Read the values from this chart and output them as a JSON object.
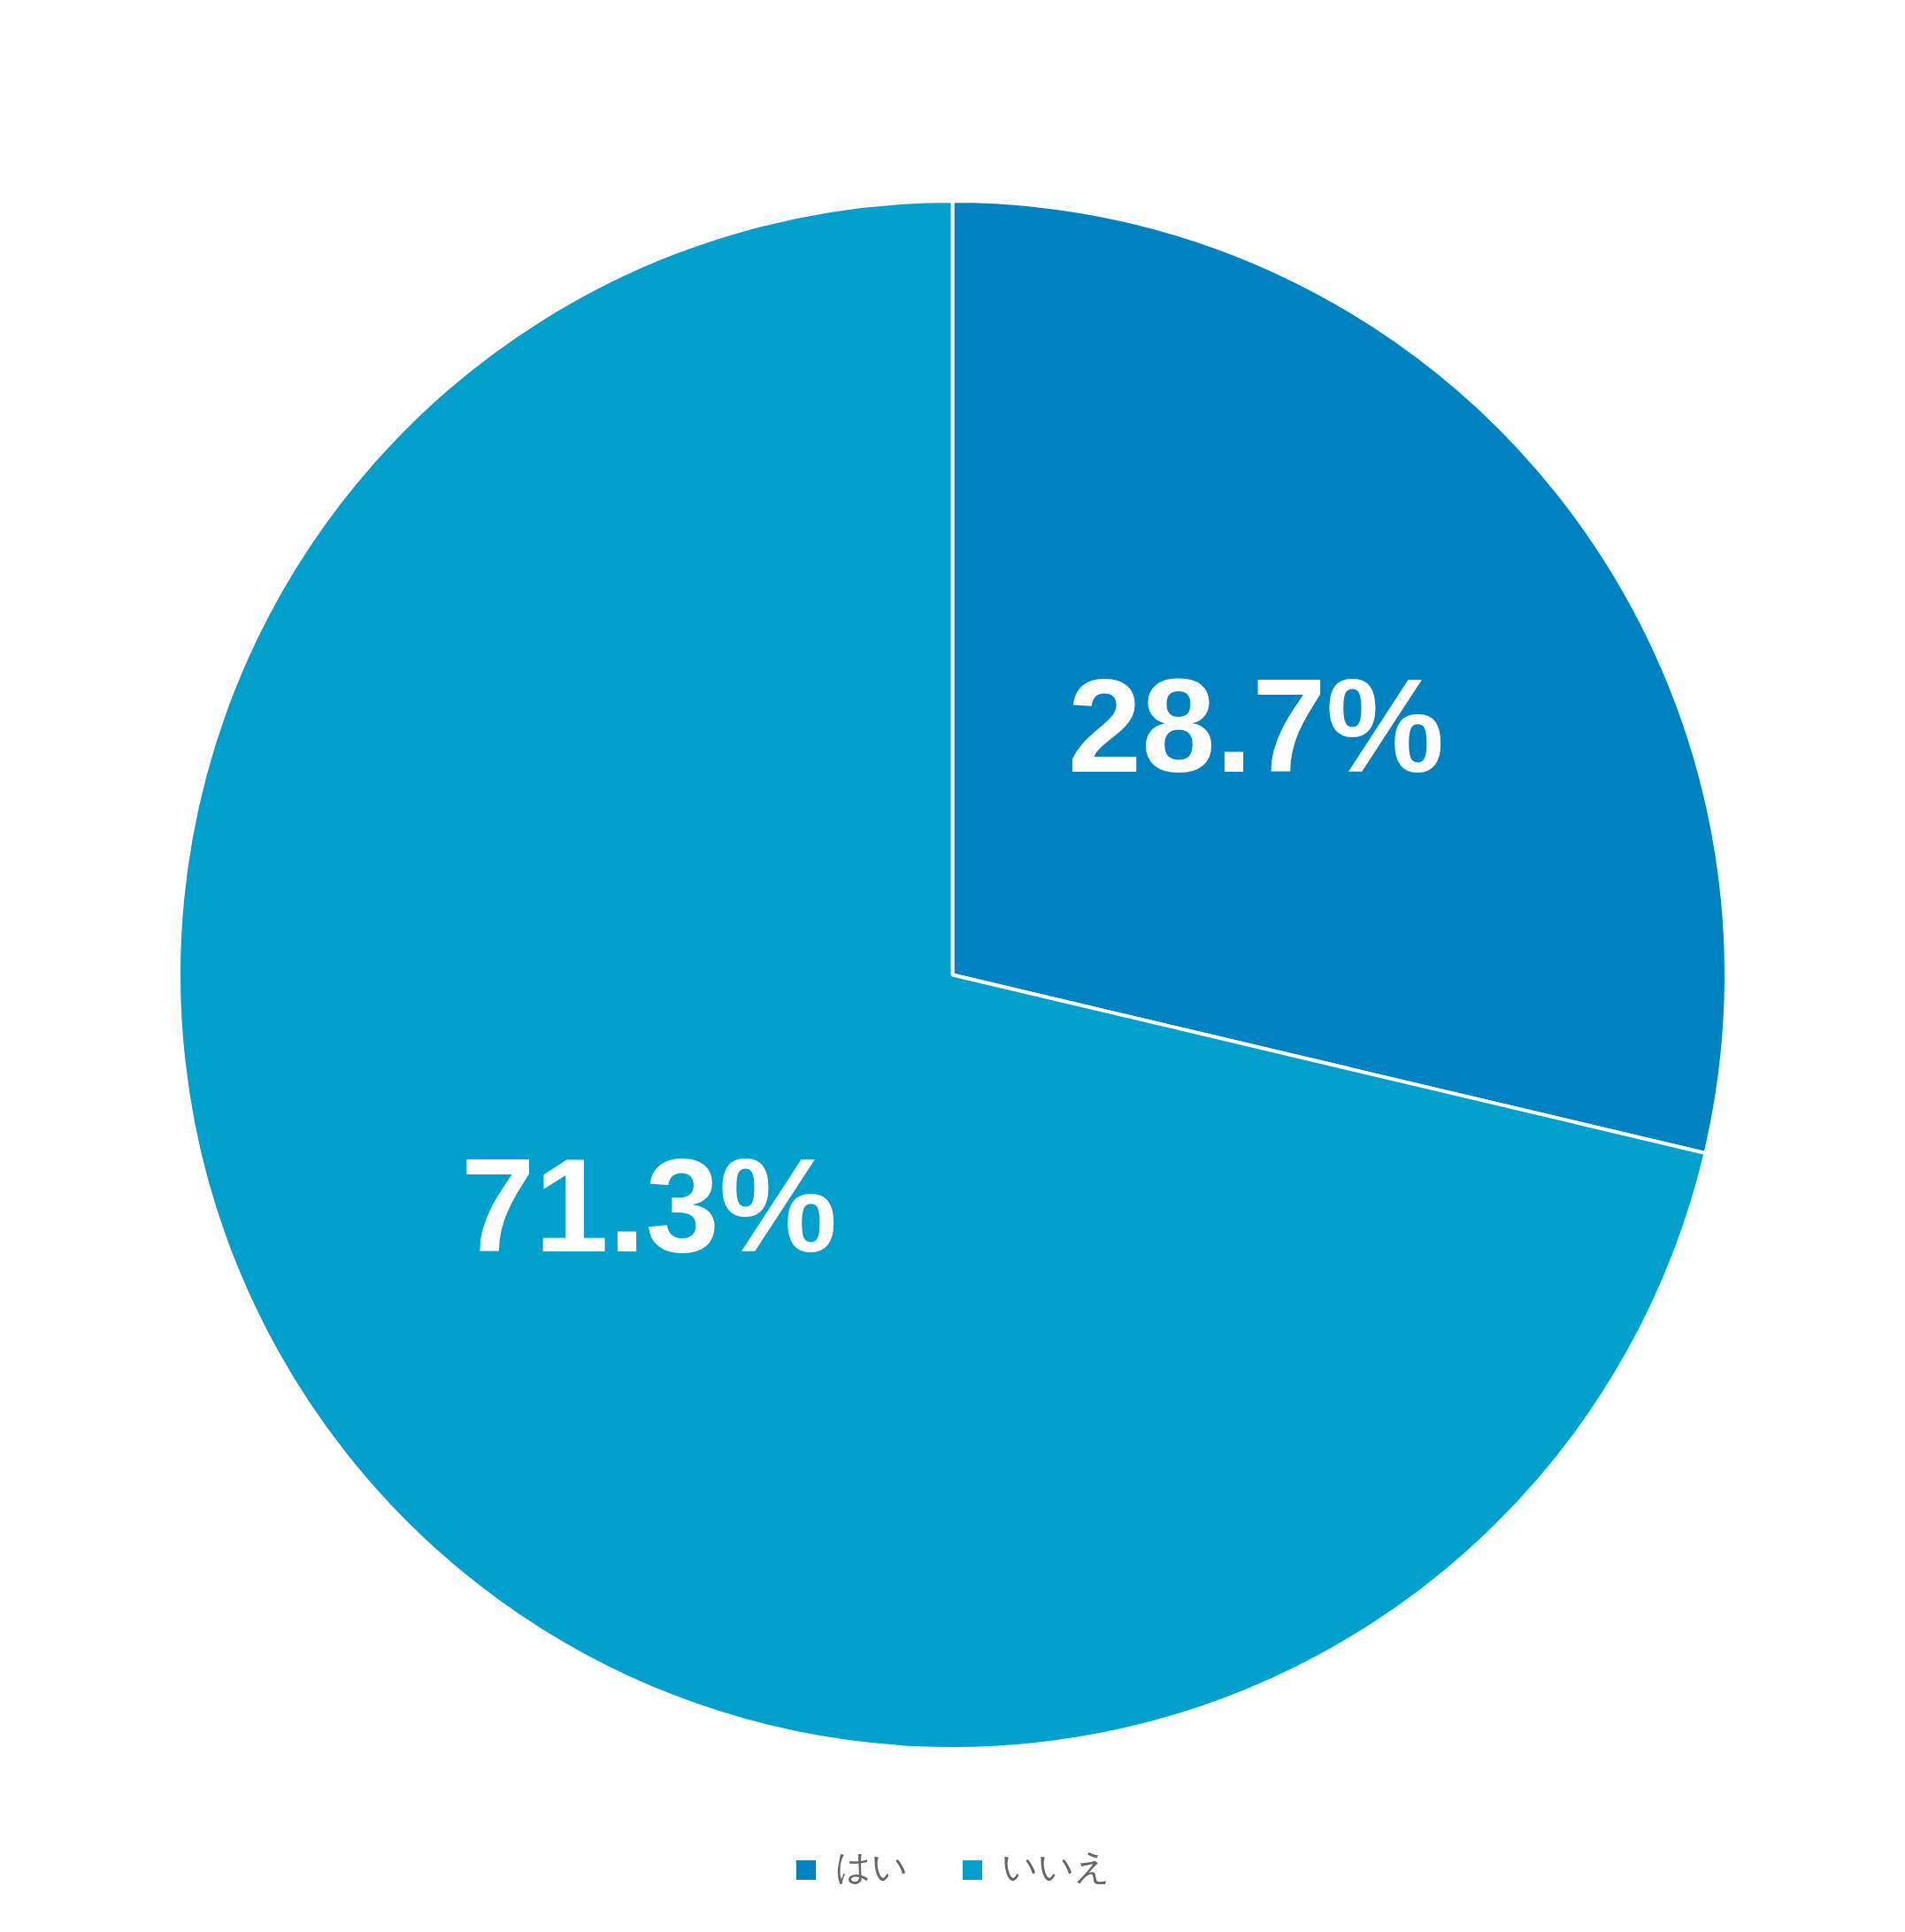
{
  "chart_data": {
    "type": "pie",
    "categories": [
      "はい",
      "いいえ"
    ],
    "values": [
      28.7,
      71.3
    ],
    "colors": [
      "#0082c0",
      "#009fcc"
    ],
    "value_labels": [
      "28.7%",
      "71.3%"
    ],
    "legend": "bottom"
  }
}
